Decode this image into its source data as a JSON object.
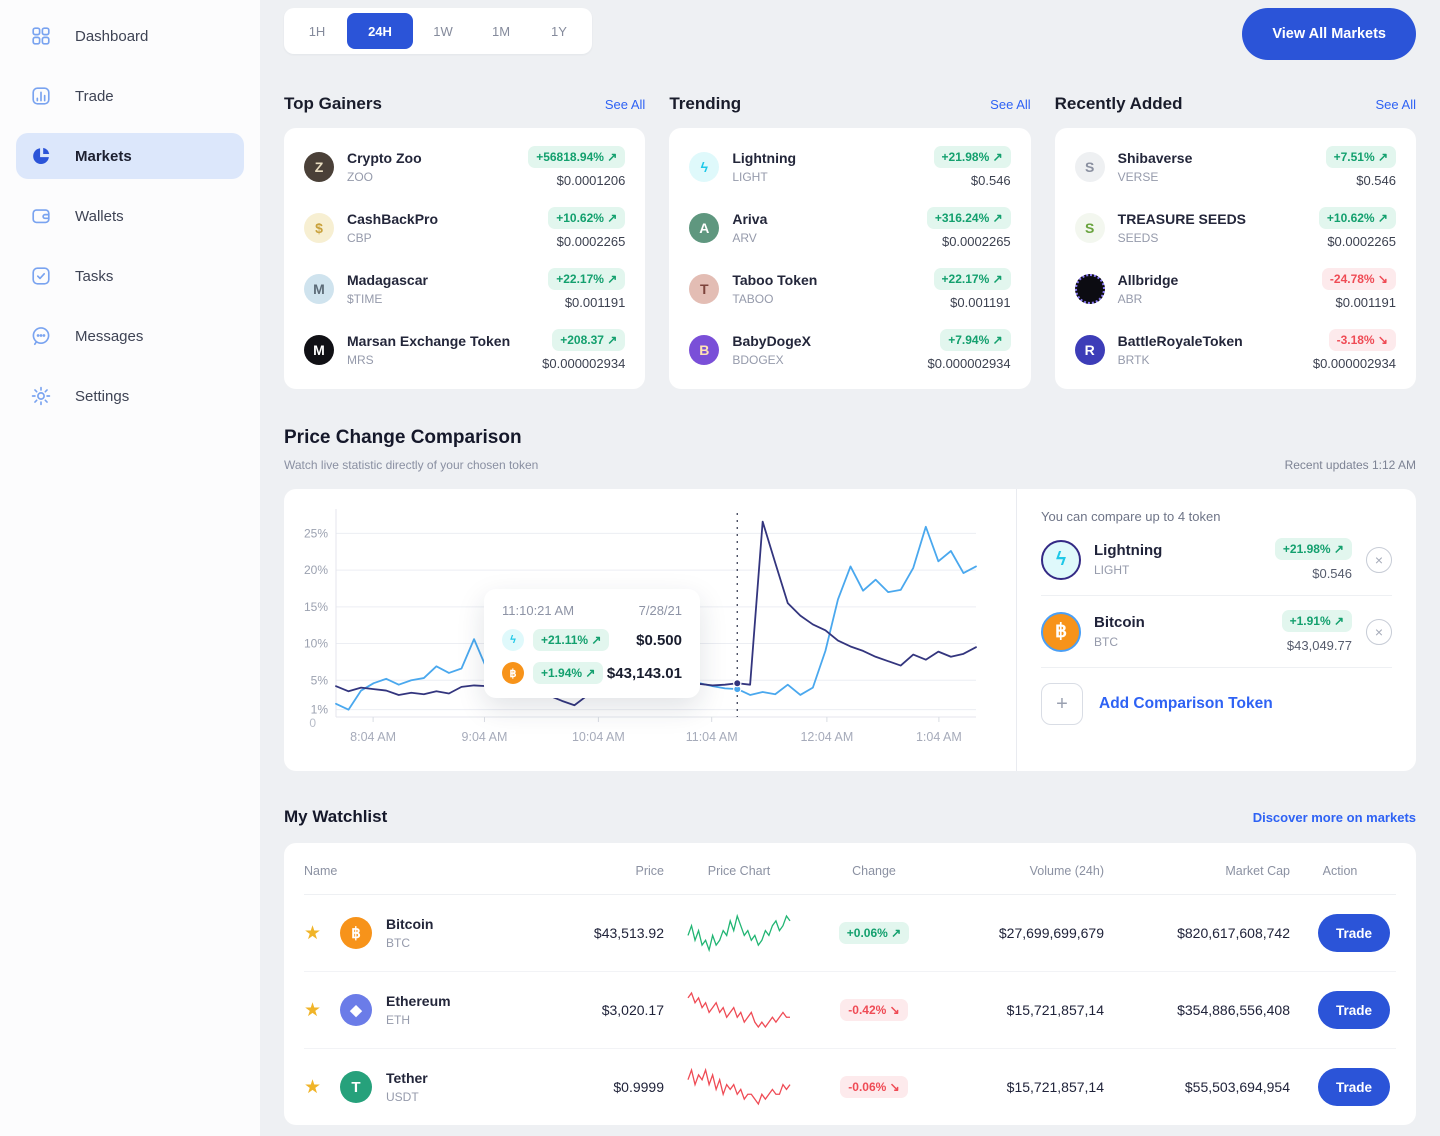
{
  "misc": {
    "arrow_up": "↗",
    "arrow_down": "↘",
    "accent": "#2b54d8",
    "link_color": "#2e62f4",
    "green": "#13a06e",
    "red": "#ef4b55"
  },
  "sidebar": {
    "items": [
      {
        "label": "Dashboard",
        "icon": "dashboard",
        "active": false
      },
      {
        "label": "Trade",
        "icon": "trade",
        "active": false
      },
      {
        "label": "Markets",
        "icon": "markets",
        "active": true
      },
      {
        "label": "Wallets",
        "icon": "wallets",
        "active": false
      },
      {
        "label": "Tasks",
        "icon": "tasks",
        "active": false
      },
      {
        "label": "Messages",
        "icon": "messages",
        "active": false
      },
      {
        "label": "Settings",
        "icon": "settings",
        "active": false
      }
    ]
  },
  "topbar": {
    "ranges": [
      "1H",
      "24H",
      "1W",
      "1M",
      "1Y"
    ],
    "active_range": "24H",
    "view_all_label": "View All Markets"
  },
  "market_sections": [
    {
      "title": "Top Gainers",
      "see_all": "See All",
      "tokens": [
        {
          "name": "Crypto Zoo",
          "symbol": "ZOO",
          "change": "+56818.94%",
          "direction": "up",
          "price": "$0.0001206",
          "icon": {
            "bg": "#4a4038",
            "color": "#e8dcc0",
            "glyph": "Z"
          }
        },
        {
          "name": "CashBackPro",
          "symbol": "CBP",
          "change": "+10.62%",
          "direction": "up",
          "price": "$0.0002265",
          "icon": {
            "bg": "#f7efd2",
            "color": "#c9a13b",
            "glyph": "$"
          }
        },
        {
          "name": "Madagascar",
          "symbol": "$TIME",
          "change": "+22.17%",
          "direction": "up",
          "price": "$0.001191",
          "icon": {
            "bg": "#cfe3ee",
            "color": "#5c6b78",
            "glyph": "M"
          }
        },
        {
          "name": "Marsan Exchange Token",
          "symbol": "MRS",
          "change": "+208.37",
          "direction": "up",
          "price": "$0.000002934",
          "icon": {
            "bg": "#101015",
            "color": "#ffffff",
            "glyph": "M"
          }
        }
      ]
    },
    {
      "title": "Trending",
      "see_all": "See All",
      "tokens": [
        {
          "name": "Lightning",
          "symbol": "LIGHT",
          "change": "+21.98%",
          "direction": "up",
          "price": "$0.546",
          "icon": {
            "bg": "#dff9fb",
            "color": "#1ec8e8",
            "glyph": "ϟ"
          }
        },
        {
          "name": "Ariva",
          "symbol": "ARV",
          "change": "+316.24%",
          "direction": "up",
          "price": "$0.0002265",
          "icon": {
            "bg": "#5f977f",
            "color": "#ffffff",
            "glyph": "A"
          }
        },
        {
          "name": "Taboo Token",
          "symbol": "TABOO",
          "change": "+22.17%",
          "direction": "up",
          "price": "$0.001191",
          "icon": {
            "bg": "#e3bdb4",
            "color": "#7e443c",
            "glyph": "T"
          }
        },
        {
          "name": "BabyDogeX",
          "symbol": "BDOGEX",
          "change": "+7.94%",
          "direction": "up",
          "price": "$0.000002934",
          "icon": {
            "bg": "#7a4fd8",
            "color": "#ffe3b3",
            "glyph": "B"
          }
        }
      ]
    },
    {
      "title": "Recently Added",
      "see_all": "See All",
      "tokens": [
        {
          "name": "Shibaverse",
          "symbol": "VERSE",
          "change": "+7.51%",
          "direction": "up",
          "price": "$0.546",
          "icon": {
            "bg": "#eef0f2",
            "color": "#8a90a0",
            "glyph": "S"
          }
        },
        {
          "name": "TREASURE SEEDS",
          "symbol": "SEEDS",
          "change": "+10.62%",
          "direction": "up",
          "price": "$0.0002265",
          "icon": {
            "bg": "#f3f7ef",
            "color": "#69a33e",
            "glyph": "S"
          }
        },
        {
          "name": "Allbridge",
          "symbol": "ABR",
          "change": "-24.78%",
          "direction": "down",
          "price": "$0.001191",
          "icon": {
            "bg": "#0c0c12",
            "color": "#8b7bf4",
            "glyph": "",
            "dotted": true
          }
        },
        {
          "name": "BattleRoyaleToken",
          "symbol": "BRTK",
          "change": "-3.18%",
          "direction": "down",
          "price": "$0.000002934",
          "icon": {
            "bg": "#3d3db8",
            "color": "#ffffff",
            "glyph": "R"
          }
        }
      ]
    }
  ],
  "comparison": {
    "title": "Price Change Comparison",
    "subtitle": "Watch live statistic directly of your chosen token",
    "updated": "Recent updates 1:12 AM",
    "panel_hint": "You can compare up to 4 token",
    "add_label": "Add Comparison Token",
    "tokens": [
      {
        "name": "Lightning",
        "symbol": "LIGHT",
        "change": "+21.98%",
        "direction": "up",
        "price": "$0.546",
        "icon": {
          "bg": "#dff9fb",
          "color": "#1ec8e8",
          "glyph": "ϟ",
          "ring": "#342a85"
        }
      },
      {
        "name": "Bitcoin",
        "symbol": "BTC",
        "change": "+1.91%",
        "direction": "up",
        "price": "$43,049.77",
        "icon": {
          "bg": "#f7931a",
          "color": "#ffffff",
          "glyph": "฿",
          "ring": "#4a9ff5"
        }
      }
    ],
    "tooltip": {
      "time": "11:10:21 AM",
      "date": "7/28/21",
      "rows": [
        {
          "change": "+21.11%",
          "direction": "up",
          "value": "$0.500",
          "icon": {
            "bg": "#dff9fb",
            "color": "#1ec8e8",
            "glyph": "ϟ"
          }
        },
        {
          "change": "+1.94%",
          "direction": "up",
          "value": "$43,143.01",
          "icon": {
            "bg": "#f7931a",
            "color": "#ffffff",
            "glyph": "฿"
          }
        }
      ]
    },
    "chart_data": {
      "type": "line",
      "ylim": [
        0,
        27.5
      ],
      "y_ticks": [
        {
          "v": 25,
          "label": "25%"
        },
        {
          "v": 20,
          "label": "20%"
        },
        {
          "v": 15,
          "label": "15%"
        },
        {
          "v": 10,
          "label": "10%"
        },
        {
          "v": 5,
          "label": "5%"
        },
        {
          "v": 1,
          "label": "1%"
        }
      ],
      "zero_label": "0",
      "x_labels": [
        {
          "f": 0.058,
          "label": "8:04 AM"
        },
        {
          "f": 0.232,
          "label": "9:04 AM"
        },
        {
          "f": 0.41,
          "label": "10:04 AM"
        },
        {
          "f": 0.587,
          "label": "11:04 AM"
        },
        {
          "f": 0.767,
          "label": "12:04 AM"
        },
        {
          "f": 0.942,
          "label": "1:04 AM"
        }
      ],
      "series": [
        {
          "name": "Lightning",
          "color": "#4aa8ee",
          "values": [
            1.8,
            1.0,
            3.6,
            4.6,
            5.2,
            4.4,
            5.0,
            5.3,
            6.9,
            6.0,
            6.6,
            10.6,
            6.6,
            7.1,
            6.3,
            5.7,
            5.2,
            6.4,
            5.3,
            5.0,
            4.7,
            5.6,
            5.1,
            4.7,
            4.4,
            4.1,
            4.6,
            4.3,
            4.0,
            4.6,
            4.2,
            3.9,
            3.8,
            3.0,
            3.4,
            3.1,
            4.4,
            3.0,
            4.0,
            9.0,
            16.0,
            20.5,
            17.2,
            18.7,
            17.0,
            17.3,
            20.3,
            25.9,
            21.2,
            22.6,
            19.6,
            20.5
          ]
        },
        {
          "name": "Bitcoin",
          "color": "#33357e",
          "values": [
            4.2,
            3.5,
            4.0,
            3.8,
            3.6,
            3.0,
            3.3,
            3.1,
            3.5,
            3.2,
            4.1,
            4.3,
            4.2,
            3.9,
            4.0,
            3.3,
            3.1,
            2.9,
            2.2,
            1.6,
            2.9,
            3.0,
            2.8,
            2.9,
            3.1,
            2.9,
            3.0,
            3.1,
            2.9,
            4.5,
            4.3,
            4.4,
            4.6,
            4.4,
            26.6,
            21.0,
            15.5,
            13.8,
            12.6,
            11.8,
            10.4,
            9.6,
            9.0,
            8.2,
            7.6,
            7.0,
            8.5,
            7.8,
            8.9,
            8.2,
            8.6,
            9.5
          ]
        }
      ],
      "marker": {
        "fraction": 0.627,
        "values": [
          3.8,
          4.6
        ]
      },
      "grid": true,
      "legend_position": "none"
    }
  },
  "watchlist": {
    "title": "My Watchlist",
    "link": "Discover more on markets",
    "columns": [
      "Name",
      "Price",
      "Price Chart",
      "Change",
      "Volume (24h)",
      "Market Cap",
      "Action"
    ],
    "rows": [
      {
        "name": "Bitcoin",
        "symbol": "BTC",
        "price": "$43,513.92",
        "change": "+0.06%",
        "direction": "up",
        "volume": "$27,699,699,679",
        "mcap": "$820,617,608,742",
        "action": "Trade",
        "spark_color": "#21b573",
        "spark": [
          5,
          7,
          4,
          6,
          3,
          4,
          2,
          5,
          3,
          4,
          6,
          5,
          8,
          6,
          9,
          7,
          5,
          6,
          4,
          5,
          3,
          4,
          6,
          5,
          7,
          8,
          6,
          7,
          9,
          8
        ],
        "icon": {
          "bg": "#f7931a",
          "color": "#ffffff",
          "glyph": "฿"
        }
      },
      {
        "name": "Ethereum",
        "symbol": "ETH",
        "price": "$3,020.17",
        "change": "-0.42%",
        "direction": "down",
        "volume": "$15,721,857,14",
        "mcap": "$354,886,556,408",
        "action": "Trade",
        "spark_color": "#ef4b55",
        "spark": [
          8,
          9,
          7,
          8,
          6,
          7,
          5,
          6,
          7,
          5,
          6,
          4,
          5,
          6,
          4,
          5,
          3,
          4,
          5,
          3,
          2,
          3,
          2,
          3,
          4,
          3,
          4,
          5,
          4,
          4
        ],
        "icon": {
          "bg": "#6b7ce8",
          "color": "#ffffff",
          "glyph": "◆"
        }
      },
      {
        "name": "Tether",
        "symbol": "USDT",
        "price": "$0.9999",
        "change": "-0.06%",
        "direction": "down",
        "volume": "$15,721,857,14",
        "mcap": "$55,503,694,954",
        "action": "Trade",
        "spark_color": "#ef4b55",
        "spark": [
          6,
          8,
          5,
          7,
          6,
          8,
          5,
          7,
          4,
          6,
          3,
          5,
          4,
          5,
          3,
          4,
          2,
          3,
          3,
          2,
          1,
          3,
          2,
          3,
          4,
          3,
          3,
          5,
          4,
          5
        ],
        "icon": {
          "bg": "#26a17b",
          "color": "#ffffff",
          "glyph": "T"
        }
      }
    ]
  }
}
